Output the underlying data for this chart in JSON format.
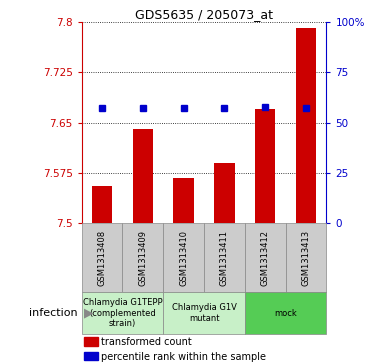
{
  "title": "GDS5635 / 205073_at",
  "samples": [
    "GSM1313408",
    "GSM1313409",
    "GSM1313410",
    "GSM1313411",
    "GSM1313412",
    "GSM1313413"
  ],
  "bar_values": [
    7.555,
    7.64,
    7.568,
    7.59,
    7.67,
    7.79
  ],
  "percentile_values": [
    7.671,
    7.672,
    7.671,
    7.671,
    7.673,
    7.672
  ],
  "ymin": 7.5,
  "ymax": 7.8,
  "yticks": [
    7.5,
    7.575,
    7.65,
    7.725,
    7.8
  ],
  "ytick_labels": [
    "7.5",
    "7.575",
    "7.65",
    "7.725",
    "7.8"
  ],
  "right_yticks": [
    0,
    25,
    50,
    75,
    100
  ],
  "right_ytick_labels": [
    "0",
    "25",
    "50",
    "75",
    "100%"
  ],
  "bar_color": "#cc0000",
  "dot_color": "#0000cc",
  "bar_base": 7.5,
  "groups": [
    {
      "label": "Chlamydia G1TEPP\n(complemented\nstrain)",
      "start": 0,
      "end": 2,
      "color": "#c8f0c8"
    },
    {
      "label": "Chlamydia G1V\nmutant",
      "start": 2,
      "end": 4,
      "color": "#c8f0c8"
    },
    {
      "label": "mock",
      "start": 4,
      "end": 6,
      "color": "#55cc55"
    }
  ],
  "infection_label": "infection",
  "sample_box_color": "#cccccc",
  "legend_items": [
    {
      "color": "#cc0000",
      "label": "transformed count"
    },
    {
      "color": "#0000cc",
      "label": "percentile rank within the sample"
    }
  ]
}
